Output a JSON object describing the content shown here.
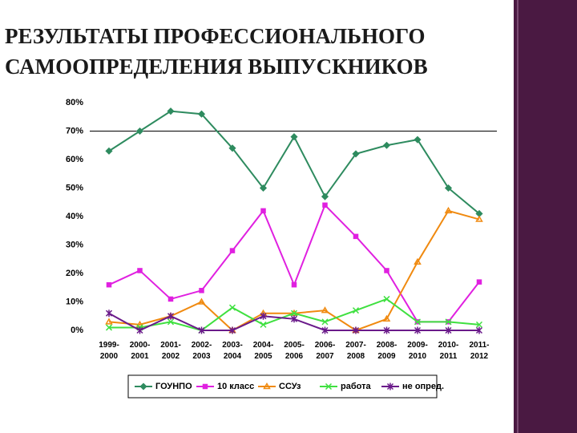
{
  "chart_data": {
    "type": "line",
    "title": "РЕЗУЛЬТАТЫ ПРОФЕССИОНАЛЬНОГО\nСАМООПРЕДЕЛЕНИЯ ВЫПУСКНИКОВ",
    "categories": [
      "1999-\n2000",
      "2000-\n2001",
      "2001-\n2002",
      "2002-\n2003",
      "2003-\n2004",
      "2004-\n2005",
      "2005-\n2006",
      "2006-\n2007",
      "2007-\n2008",
      "2008-\n2009",
      "2009-\n2010",
      "2010-\n2011",
      "2011-\n2012"
    ],
    "series": [
      {
        "name": "ГОУНПО",
        "color": "#2e8b5f",
        "marker": "diamond",
        "values": [
          63,
          70,
          77,
          76,
          64,
          50,
          68,
          47,
          62,
          65,
          67,
          50,
          41
        ]
      },
      {
        "name": "10 класс",
        "color": "#e020e0",
        "marker": "square",
        "values": [
          16,
          21,
          11,
          14,
          28,
          42,
          16,
          44,
          33,
          21,
          3,
          3,
          17
        ]
      },
      {
        "name": "ССУз",
        "color": "#f08a10",
        "marker": "triangle",
        "values": [
          3,
          2,
          5,
          10,
          0,
          6,
          6,
          7,
          0,
          4,
          24,
          42,
          39
        ]
      },
      {
        "name": "работа",
        "color": "#3fe040",
        "marker": "x",
        "values": [
          1,
          1,
          3,
          0,
          8,
          2,
          6,
          3,
          7,
          11,
          3,
          3,
          2
        ]
      },
      {
        "name": "не опред.",
        "color": "#6a1a8a",
        "marker": "star",
        "values": [
          6,
          0,
          5,
          0,
          0,
          5,
          4,
          0,
          0,
          0,
          0,
          0,
          0
        ]
      }
    ],
    "ylim": [
      0,
      80
    ],
    "yticks": [
      {
        "value": 0,
        "label": "0%"
      },
      {
        "value": 10,
        "label": "10%"
      },
      {
        "value": 20,
        "label": "20%"
      },
      {
        "value": 30,
        "label": "30%"
      },
      {
        "value": 40,
        "label": "40%"
      },
      {
        "value": 50,
        "label": "50%"
      },
      {
        "value": 60,
        "label": "60%"
      },
      {
        "value": 70,
        "label": "70%"
      },
      {
        "value": 80,
        "label": "80%"
      }
    ],
    "reference_line": 70,
    "grid": false,
    "legend": "bottom"
  }
}
